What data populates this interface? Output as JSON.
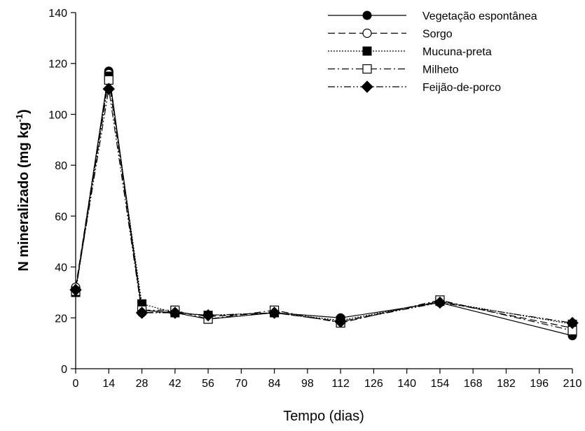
{
  "chart_data": {
    "type": "line",
    "title": "",
    "xlabel": "Tempo (dias)",
    "ylabel": "N mineralizado (mg kg",
    "ylabel_sup": "-1",
    "ylabel_tail": ")",
    "xlim": [
      0,
      210
    ],
    "ylim": [
      0,
      140
    ],
    "x_ticks": [
      0,
      14,
      28,
      42,
      56,
      70,
      84,
      98,
      112,
      126,
      140,
      154,
      168,
      182,
      196,
      210
    ],
    "y_ticks": [
      0,
      20,
      40,
      60,
      80,
      100,
      120,
      140
    ],
    "grid": false,
    "legend_position": "top-right",
    "x": [
      0,
      14,
      28,
      42,
      56,
      84,
      112,
      154,
      210
    ],
    "series": [
      {
        "name": "Vegetação espontânea",
        "marker": "filled-circle",
        "dash": "solid",
        "values": [
          31,
          117,
          23,
          22,
          19.5,
          22,
          20,
          26,
          13
        ]
      },
      {
        "name": "Sorgo",
        "marker": "open-circle",
        "dash": "dashed",
        "values": [
          32,
          116,
          22,
          22.5,
          20.5,
          22,
          18.5,
          26.5,
          16
        ]
      },
      {
        "name": "Mucuna-preta",
        "marker": "filled-square",
        "dash": "dotted",
        "values": [
          30,
          115,
          25.5,
          22,
          21,
          22,
          19,
          26.5,
          17.5
        ]
      },
      {
        "name": "Milheto",
        "marker": "open-square",
        "dash": "dash-dot",
        "values": [
          30.5,
          113.5,
          23,
          23,
          19.5,
          23,
          18,
          27,
          15
        ]
      },
      {
        "name": "Feijão-de-porco",
        "marker": "filled-diamond",
        "dash": "dash-dot-dot",
        "values": [
          31,
          110,
          22,
          22,
          21,
          22,
          18.5,
          26,
          18
        ]
      }
    ]
  }
}
